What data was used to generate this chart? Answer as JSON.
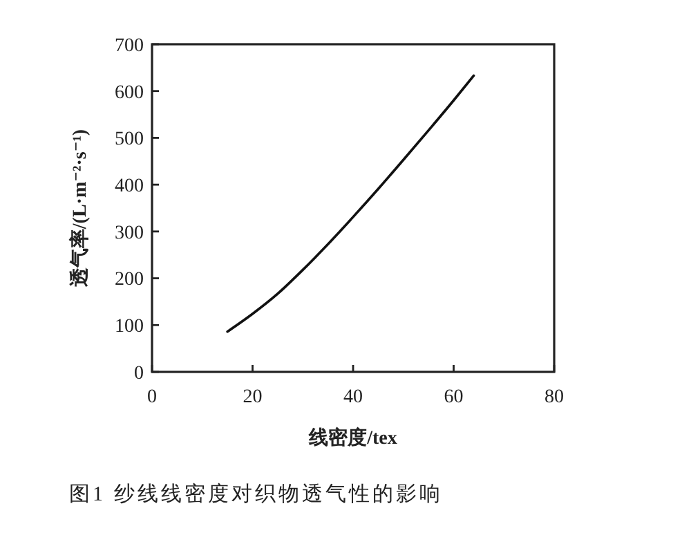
{
  "chart_data": {
    "type": "line",
    "title": "图1 纱线线密度对织物透气性的影响",
    "xlabel": "线密度/tex",
    "ylabel": "透气率/(L·m⁻²·s⁻¹)",
    "x": [
      15,
      20,
      25,
      30,
      35,
      40,
      45,
      50,
      55,
      60,
      64
    ],
    "series": [
      {
        "color": "#111111",
        "values": [
          86,
          124,
          167,
          218,
          273,
          331,
          391,
          453,
          516,
          580,
          633
        ]
      }
    ],
    "xlim": [
      0,
      80
    ],
    "ylim": [
      0,
      700
    ],
    "xticks": [
      0,
      20,
      40,
      60,
      80
    ],
    "yticks": [
      0,
      100,
      200,
      300,
      400,
      500,
      600,
      700
    ]
  }
}
